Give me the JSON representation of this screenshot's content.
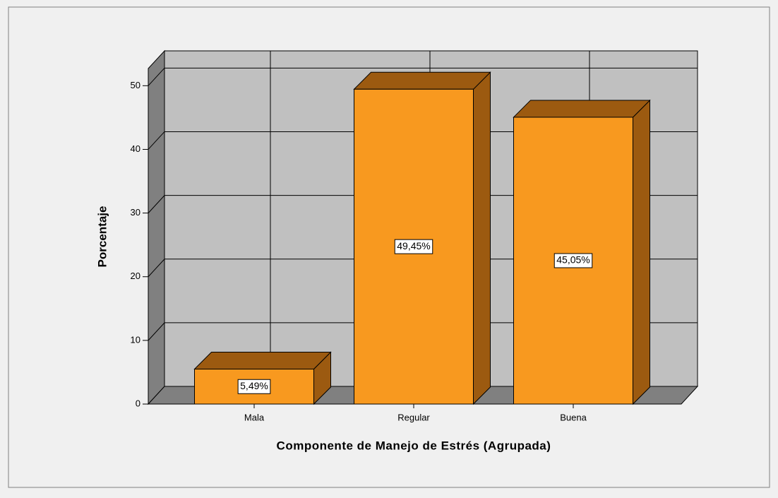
{
  "chart_data": {
    "type": "bar3d",
    "x_label": "Componente de Manejo de Estrés (Agrupada)",
    "y_label": "Porcentaje",
    "categories": [
      "Mala",
      "Regular",
      "Buena"
    ],
    "values": [
      5.49,
      49.45,
      45.05
    ],
    "value_labels": [
      "5,49%",
      "49,45%",
      "45,05%"
    ],
    "color": "#f8991f",
    "ylim": [
      0,
      52.7
    ],
    "yticks": [
      0,
      10,
      20,
      30,
      40,
      50
    ],
    "grid": true
  }
}
